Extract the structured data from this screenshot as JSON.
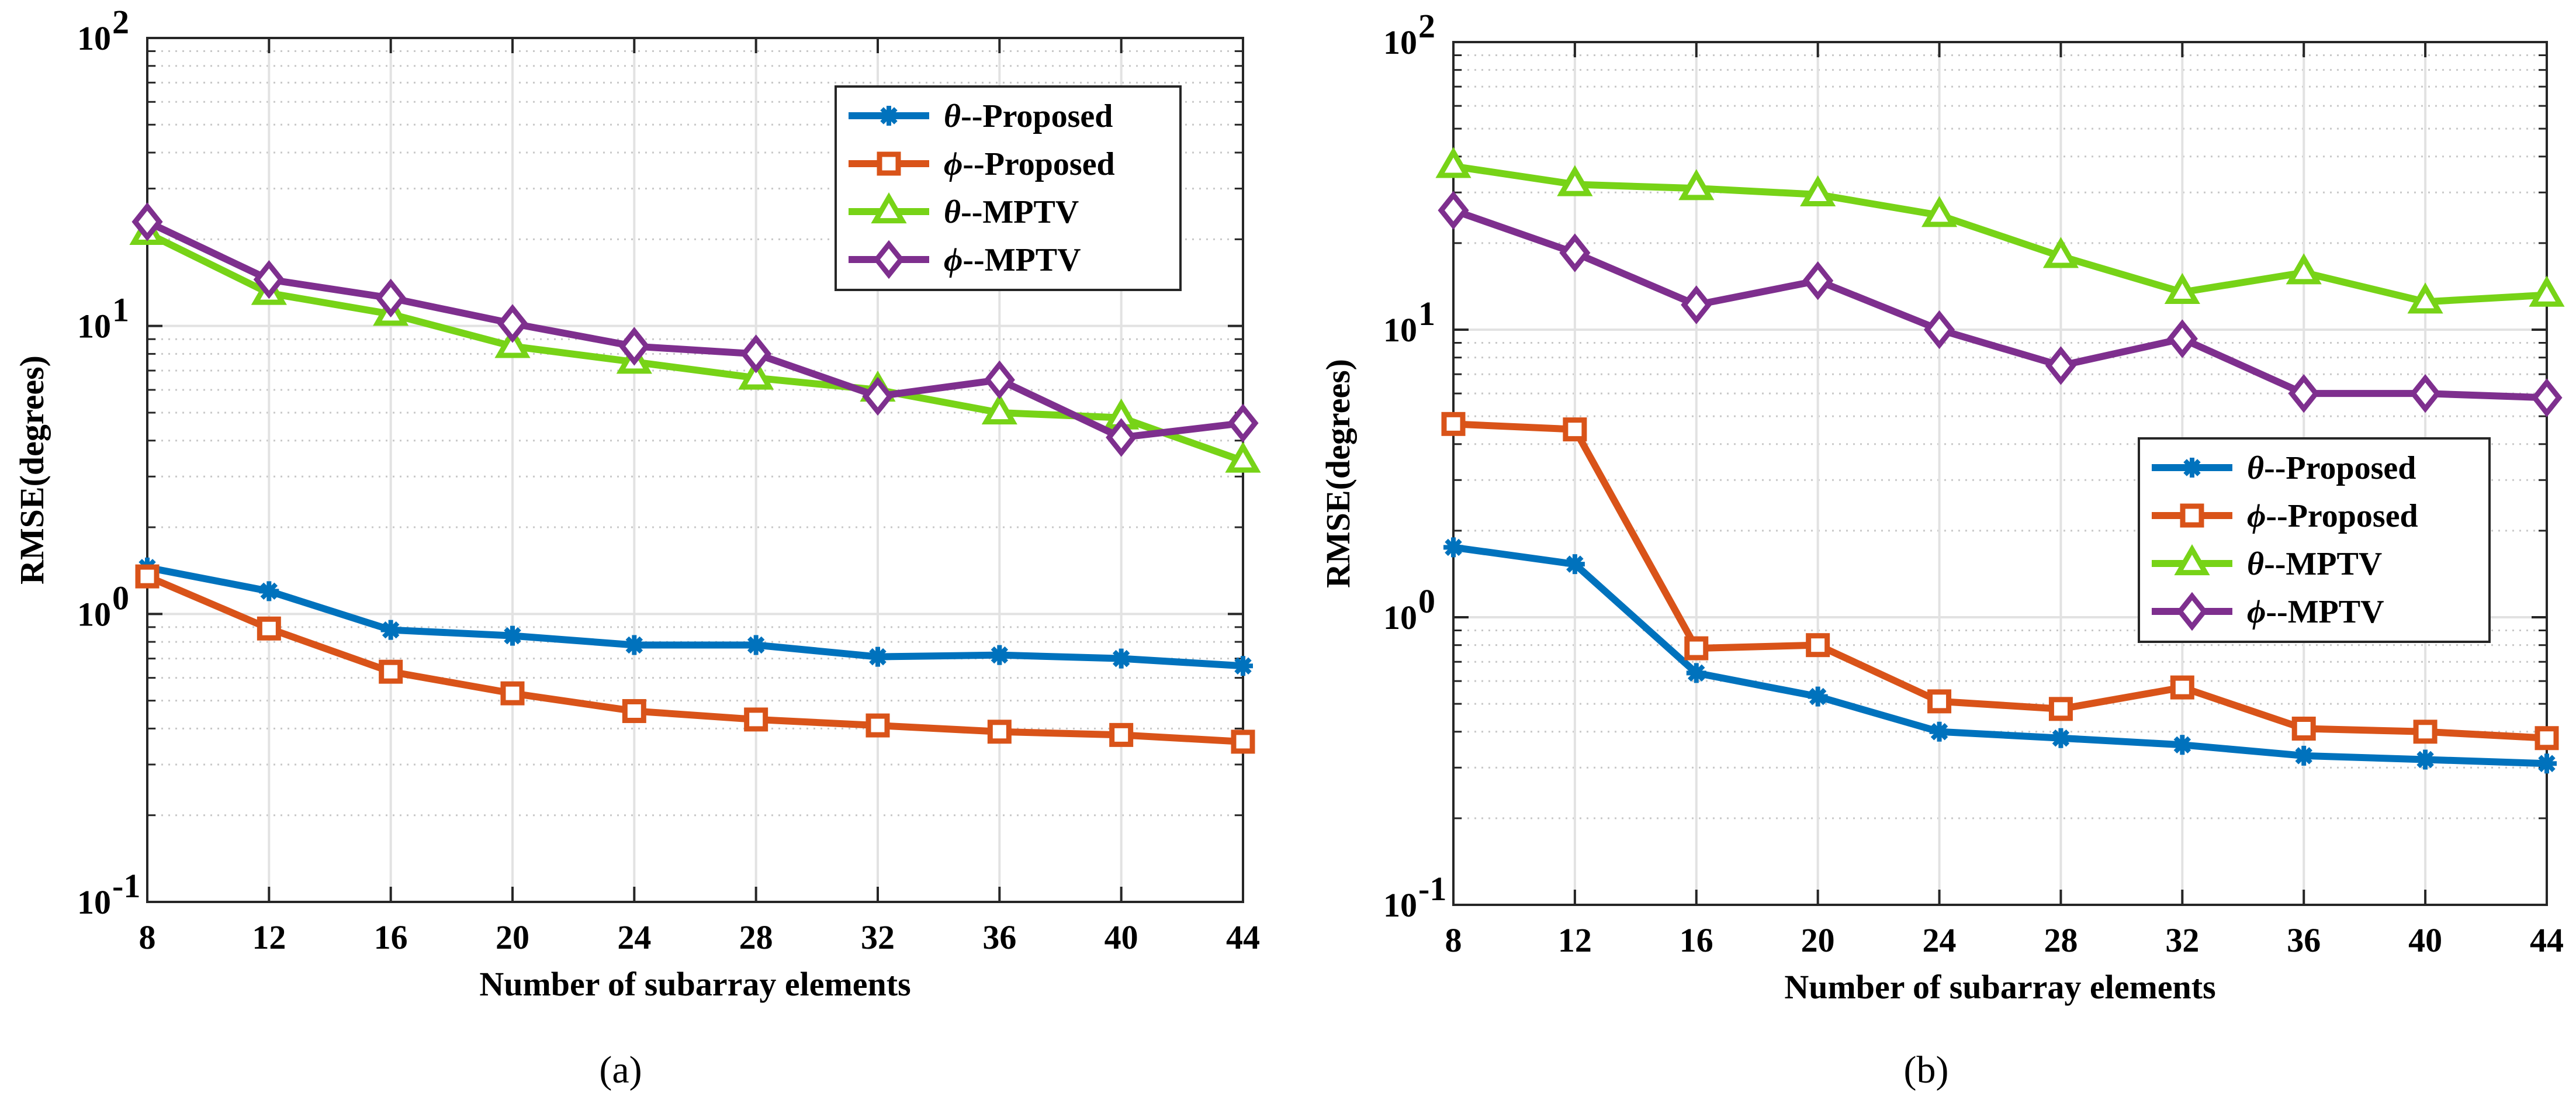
{
  "chart_data": [
    {
      "type": "line",
      "panel": "a",
      "caption": "(a)",
      "xlabel": "Number of subarray elements",
      "ylabel": "RMSE(degrees)",
      "yscale": "log",
      "ylim": [
        0.1,
        100
      ],
      "xlim": [
        8,
        44
      ],
      "x": [
        8,
        12,
        16,
        20,
        24,
        28,
        32,
        36,
        40,
        44
      ],
      "xticks": [
        "8",
        "12",
        "16",
        "20",
        "24",
        "28",
        "32",
        "36",
        "40",
        "44"
      ],
      "yticks": [
        {
          "base": "10",
          "exp": "-1"
        },
        {
          "base": "10",
          "exp": "0"
        },
        {
          "base": "10",
          "exp": "1"
        },
        {
          "base": "10",
          "exp": "2"
        }
      ],
      "grid": true,
      "legend_position": "top-right",
      "series": [
        {
          "name": "θ--Proposed",
          "sym": "θ",
          "rest": "--Proposed",
          "color": "#0072BD",
          "marker": "asterisk",
          "values": [
            1.45,
            1.2,
            0.88,
            0.84,
            0.78,
            0.78,
            0.71,
            0.72,
            0.7,
            0.66
          ]
        },
        {
          "name": "ϕ--Proposed",
          "sym": "ϕ",
          "rest": "--Proposed",
          "color": "#D95319",
          "marker": "square",
          "values": [
            1.35,
            0.89,
            0.63,
            0.53,
            0.46,
            0.43,
            0.41,
            0.39,
            0.38,
            0.36
          ]
        },
        {
          "name": "θ--MPTV",
          "sym": "θ",
          "rest": "--MPTV",
          "color": "#77D317",
          "marker": "triangle",
          "values": [
            21,
            13,
            11,
            8.5,
            7.5,
            6.6,
            6.0,
            5.0,
            4.8,
            3.4
          ]
        },
        {
          "name": "ϕ--MPTV",
          "sym": "ϕ",
          "rest": "--MPTV",
          "color": "#7E2F8E",
          "marker": "diamond",
          "values": [
            23,
            14.5,
            12.5,
            10.2,
            8.5,
            8.0,
            5.7,
            6.5,
            4.1,
            4.6
          ]
        }
      ]
    },
    {
      "type": "line",
      "panel": "b",
      "caption": "(b)",
      "xlabel": "Number of subarray elements",
      "ylabel": "RMSE(degrees)",
      "yscale": "log",
      "ylim": [
        0.1,
        100
      ],
      "xlim": [
        8,
        44
      ],
      "x": [
        8,
        12,
        16,
        20,
        24,
        28,
        32,
        36,
        40,
        44
      ],
      "xticks": [
        "8",
        "12",
        "16",
        "20",
        "24",
        "28",
        "32",
        "36",
        "40",
        "44"
      ],
      "yticks": [
        {
          "base": "10",
          "exp": "-1"
        },
        {
          "base": "10",
          "exp": "0"
        },
        {
          "base": "10",
          "exp": "1"
        },
        {
          "base": "10",
          "exp": "2"
        }
      ],
      "grid": true,
      "legend_position": "middle-right",
      "series": [
        {
          "name": "θ--Proposed",
          "sym": "θ",
          "rest": "--Proposed",
          "color": "#0072BD",
          "marker": "asterisk",
          "values": [
            1.75,
            1.53,
            0.64,
            0.53,
            0.4,
            0.38,
            0.36,
            0.33,
            0.32,
            0.31
          ]
        },
        {
          "name": "ϕ--Proposed",
          "sym": "ϕ",
          "rest": "--Proposed",
          "color": "#D95319",
          "marker": "square",
          "values": [
            4.7,
            4.5,
            0.78,
            0.8,
            0.51,
            0.48,
            0.57,
            0.41,
            0.4,
            0.38
          ]
        },
        {
          "name": "θ--MPTV",
          "sym": "θ",
          "rest": "--MPTV",
          "color": "#77D317",
          "marker": "triangle",
          "values": [
            37,
            32,
            31,
            29.5,
            25,
            18,
            13.5,
            15.8,
            12.5,
            13.2
          ]
        },
        {
          "name": "ϕ--MPTV",
          "sym": "ϕ",
          "rest": "--MPTV",
          "color": "#7E2F8E",
          "marker": "diamond",
          "values": [
            26,
            18.5,
            12.2,
            14.8,
            10,
            7.5,
            9.3,
            6.0,
            6.0,
            5.8
          ]
        }
      ]
    }
  ]
}
